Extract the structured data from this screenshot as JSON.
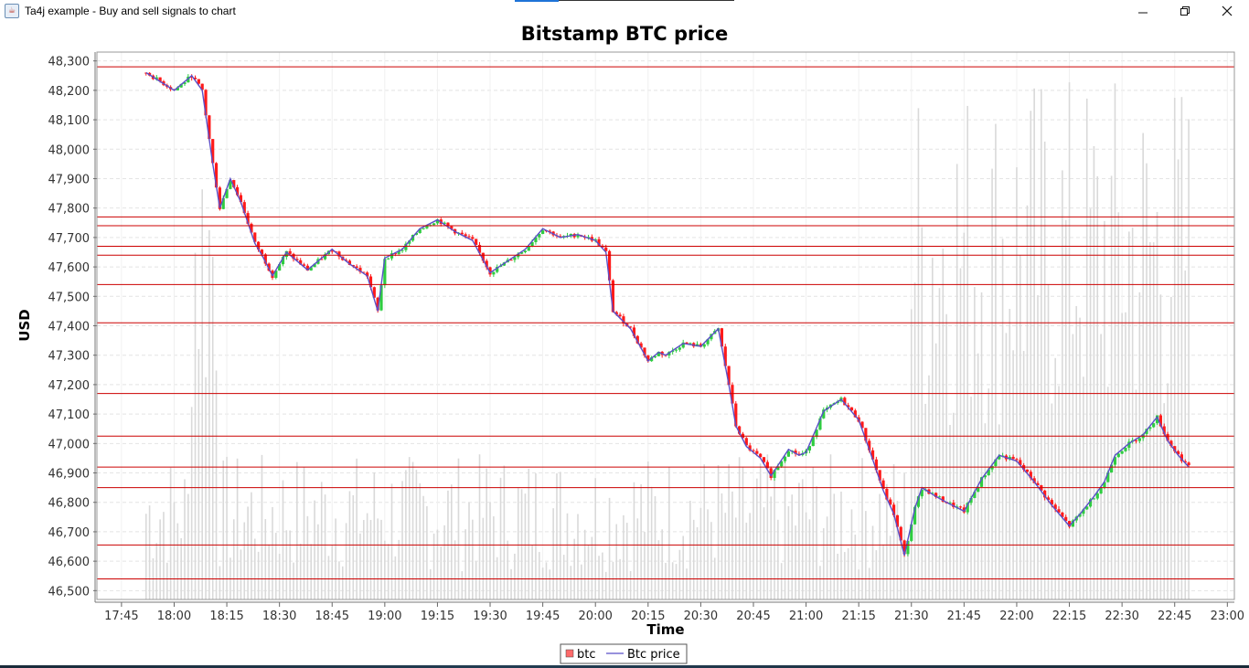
{
  "window": {
    "title": "Ta4j example - Buy and sell signals to chart",
    "controls": [
      "minimize",
      "maximize",
      "close"
    ]
  },
  "colors": {
    "up_candle": "#2ecc40",
    "down_candle": "#ff1a1a",
    "price_line": "#5a4fc8",
    "signal_line": "#cc0000",
    "volume_bar": "#d9d9d9",
    "grid": "#e4e4e4"
  },
  "chart_data": {
    "type": "candlestick",
    "title": "Bitstamp BTC price",
    "xlabel": "Time",
    "ylabel": "USD",
    "ylim": [
      46470,
      48330
    ],
    "y_ticks": [
      46500,
      46600,
      46700,
      46800,
      46900,
      47000,
      47100,
      47200,
      47300,
      47400,
      47500,
      47600,
      47700,
      47800,
      47900,
      48000,
      48100,
      48200,
      48300
    ],
    "y_tick_labels": [
      "46,500",
      "46,600",
      "46,700",
      "46,800",
      "46,900",
      "47,000",
      "47,100",
      "47,200",
      "47,300",
      "47,400",
      "47,500",
      "47,600",
      "47,700",
      "47,800",
      "47,900",
      "48,000",
      "48,100",
      "48,200",
      "48,300"
    ],
    "x_range": [
      "17:38",
      "23:02"
    ],
    "x_ticks": [
      "17:45",
      "18:00",
      "18:15",
      "18:30",
      "18:45",
      "19:00",
      "19:15",
      "19:30",
      "19:45",
      "20:00",
      "20:15",
      "20:30",
      "20:45",
      "21:00",
      "21:15",
      "21:30",
      "21:45",
      "22:00",
      "22:15",
      "22:30",
      "22:45",
      "23:00"
    ],
    "grid": true,
    "legend": {
      "placement": "bottom-center",
      "entries": [
        "btc",
        "Btc price"
      ]
    },
    "series": [
      {
        "name": "Btc price",
        "x": [
          "17:52",
          "18:00",
          "18:05",
          "18:08",
          "18:11",
          "18:13",
          "18:16",
          "18:19",
          "18:23",
          "18:25",
          "18:28",
          "18:32",
          "18:38",
          "18:45",
          "18:50",
          "18:55",
          "18:58",
          "19:00",
          "19:05",
          "19:10",
          "19:15",
          "19:20",
          "19:25",
          "19:30",
          "19:35",
          "19:40",
          "19:45",
          "19:50",
          "19:55",
          "20:00",
          "20:03",
          "20:05",
          "20:10",
          "20:15",
          "20:18",
          "20:20",
          "20:25",
          "20:30",
          "20:35",
          "20:38",
          "20:40",
          "20:43",
          "20:47",
          "20:50",
          "20:55",
          "20:58",
          "21:00",
          "21:05",
          "21:10",
          "21:15",
          "21:18",
          "21:22",
          "21:25",
          "21:28",
          "21:31",
          "21:33",
          "21:37",
          "21:40",
          "21:45",
          "21:50",
          "21:55",
          "22:00",
          "22:05",
          "22:10",
          "22:15",
          "22:18",
          "22:22",
          "22:25",
          "22:28",
          "22:32",
          "22:36",
          "22:40",
          "22:43",
          "22:46",
          "22:49"
        ],
        "values": [
          48260,
          48200,
          48250,
          48200,
          47950,
          47800,
          47900,
          47820,
          47680,
          47640,
          47570,
          47650,
          47590,
          47660,
          47610,
          47570,
          47450,
          47630,
          47660,
          47730,
          47760,
          47720,
          47690,
          47580,
          47620,
          47660,
          47730,
          47700,
          47710,
          47690,
          47650,
          47450,
          47390,
          47280,
          47310,
          47300,
          47340,
          47330,
          47390,
          47200,
          47060,
          46990,
          46950,
          46890,
          46980,
          46960,
          46970,
          47110,
          47150,
          47080,
          46980,
          46840,
          46760,
          46620,
          46780,
          46850,
          46820,
          46800,
          46770,
          46880,
          46960,
          46940,
          46870,
          46790,
          46720,
          46760,
          46820,
          46870,
          46960,
          47000,
          47030,
          47090,
          47010,
          46960,
          46920
        ]
      }
    ],
    "signal_levels": [
      48280,
      47770,
      47740,
      47670,
      47640,
      47540,
      47410,
      47170,
      47025,
      46920,
      46850,
      46655,
      46540
    ]
  }
}
